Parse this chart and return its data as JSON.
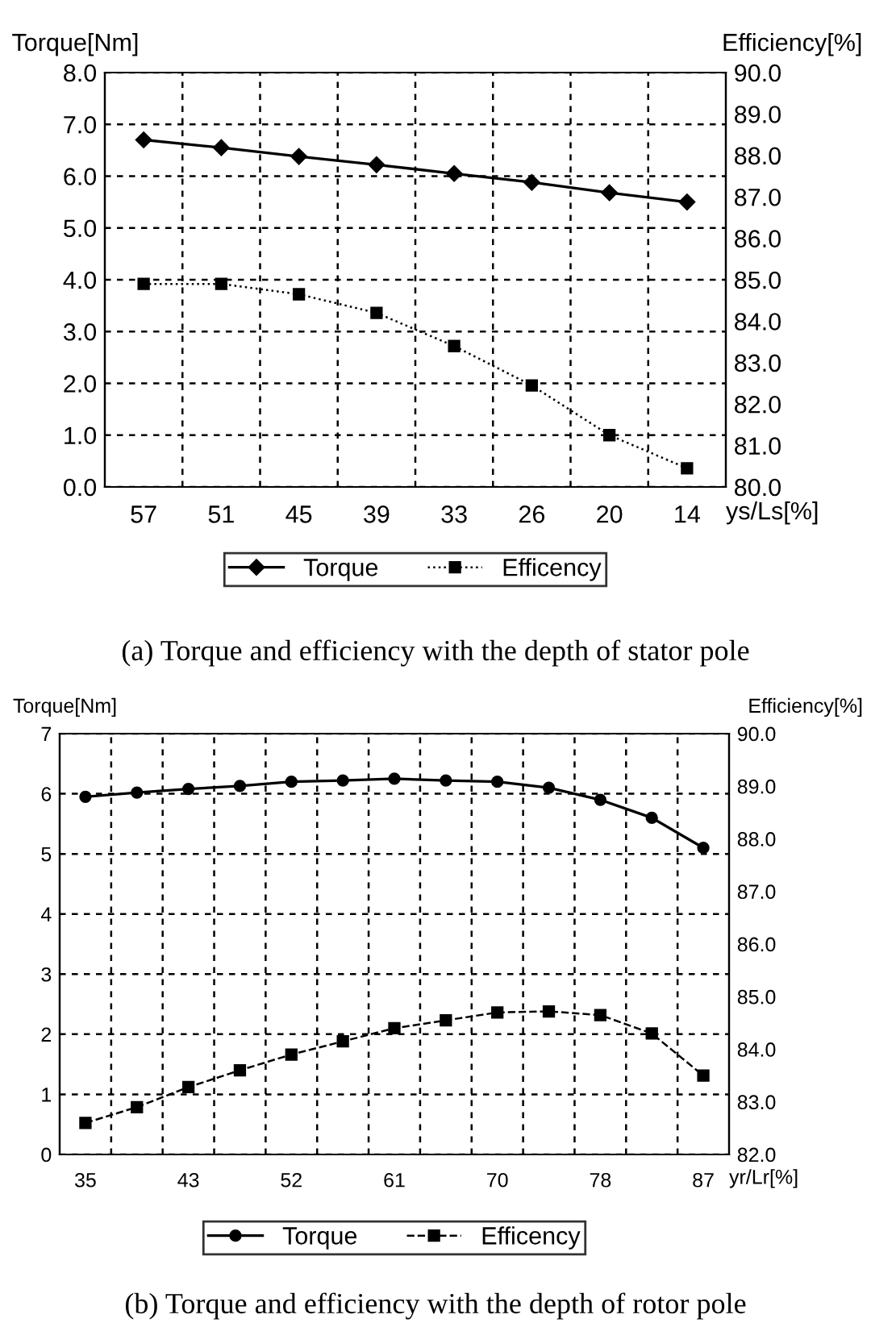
{
  "chart_data": [
    {
      "type": "line",
      "title": "(a) Torque and efficiency with the depth of stator pole",
      "xlabel": "ys/Ls[%]",
      "ylabel": "Torque[Nm]",
      "y2label": "Efficiency[%]",
      "categories": [
        "57",
        "51",
        "45",
        "39",
        "33",
        "26",
        "20",
        "14"
      ],
      "series": [
        {
          "name": "Torque",
          "color": "#000000",
          "marker": "diamond",
          "line_style": "solid",
          "values": [
            6.7,
            6.55,
            6.38,
            6.22,
            6.05,
            5.88,
            5.68,
            5.5
          ]
        },
        {
          "name": "Efficency",
          "color": "#000000",
          "marker": "square",
          "line_style": "dotted",
          "axis": "y2",
          "values": [
            84.9,
            84.9,
            84.65,
            84.2,
            83.4,
            82.45,
            81.25,
            80.45
          ]
        }
      ],
      "ylim": [
        0,
        8
      ],
      "yticks": [
        {
          "value": 0,
          "label": "0.0"
        },
        {
          "value": 1,
          "label": "1.0"
        },
        {
          "value": 2,
          "label": "2.0"
        },
        {
          "value": 3,
          "label": "3.0"
        },
        {
          "value": 4,
          "label": "4.0"
        },
        {
          "value": 5,
          "label": "5.0"
        },
        {
          "value": 6,
          "label": "6.0"
        },
        {
          "value": 7,
          "label": "7.0"
        },
        {
          "value": 8,
          "label": "8.0"
        }
      ],
      "y2lim": [
        80,
        90
      ],
      "y2ticks": [
        {
          "value": 80,
          "label": "80.0"
        },
        {
          "value": 81,
          "label": "81.0"
        },
        {
          "value": 82,
          "label": "82.0"
        },
        {
          "value": 83,
          "label": "83.0"
        },
        {
          "value": 84,
          "label": "84.0"
        },
        {
          "value": 85,
          "label": "85.0"
        },
        {
          "value": 86,
          "label": "86.0"
        },
        {
          "value": 87,
          "label": "87.0"
        },
        {
          "value": 88,
          "label": "88.0"
        },
        {
          "value": 89,
          "label": "89.0"
        },
        {
          "value": 90,
          "label": "90.0"
        }
      ],
      "grid": true,
      "legend": "bottom"
    },
    {
      "type": "line",
      "title": "(b) Torque and efficiency with the depth of rotor pole",
      "xlabel": "yr/Lr[%]",
      "ylabel": "Torque[Nm]",
      "y2label": "Efficiency[%]",
      "categories": [
        "35",
        null,
        "43",
        null,
        "52",
        null,
        "61",
        null,
        "70",
        null,
        "78",
        null,
        "87"
      ],
      "series": [
        {
          "name": "Torque",
          "color": "#000000",
          "marker": "circle",
          "line_style": "solid",
          "values": [
            5.95,
            6.02,
            6.08,
            6.13,
            6.2,
            6.22,
            6.25,
            6.22,
            6.2,
            6.1,
            5.9,
            5.6,
            5.1
          ]
        },
        {
          "name": "Efficency",
          "color": "#000000",
          "marker": "square",
          "line_style": "dashed",
          "axis": "y2",
          "values": [
            82.6,
            82.9,
            83.28,
            83.6,
            83.9,
            84.15,
            84.4,
            84.55,
            84.7,
            84.72,
            84.65,
            84.3,
            83.5
          ]
        }
      ],
      "ylim": [
        0,
        7
      ],
      "yticks": [
        0,
        1,
        2,
        3,
        4,
        5,
        6,
        7
      ],
      "y2lim": [
        82,
        90
      ],
      "y2ticks": [
        {
          "value": 82,
          "label": "82.0"
        },
        {
          "value": 83,
          "label": "83.0"
        },
        {
          "value": 84,
          "label": "84.0"
        },
        {
          "value": 85,
          "label": "85.0"
        },
        {
          "value": 86,
          "label": "86.0"
        },
        {
          "value": 87,
          "label": "87.0"
        },
        {
          "value": 88,
          "label": "88.0"
        },
        {
          "value": 89,
          "label": "89.0"
        },
        {
          "value": 90,
          "label": "90.0"
        }
      ],
      "grid": true,
      "legend": "bottom"
    }
  ]
}
